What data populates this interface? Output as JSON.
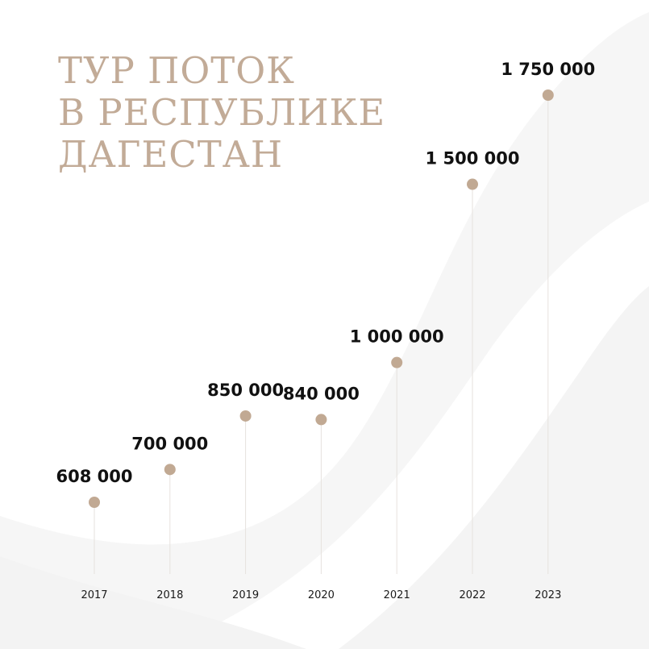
{
  "title_lines": [
    "ТУР ПОТОК",
    "В РЕСПУБЛИКЕ",
    "ДАГЕСТАН"
  ],
  "colors": {
    "accent": "#c1a993",
    "title": "#c2ab97",
    "text": "#111111",
    "stem": "#e6e2de",
    "background": "#ffffff"
  },
  "chart_data": {
    "type": "scatter",
    "title": "ТУР ПОТОК В РЕСПУБЛИКЕ ДАГЕСТАН",
    "x": [
      "2017",
      "2018",
      "2019",
      "2020",
      "2021",
      "2022",
      "2023"
    ],
    "values": [
      608000,
      700000,
      850000,
      840000,
      1000000,
      1500000,
      1750000
    ],
    "value_labels": [
      "608 000",
      "700 000",
      "850 000",
      "840 000",
      "1 000 000",
      "1 500 000",
      "1 750 000"
    ],
    "xlabel": "",
    "ylabel": "",
    "grid": false,
    "legend": "none",
    "stems": true
  }
}
